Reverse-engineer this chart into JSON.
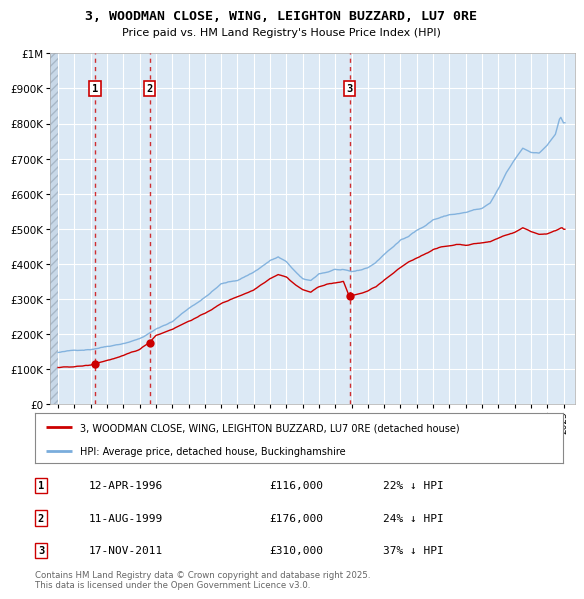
{
  "title": "3, WOODMAN CLOSE, WING, LEIGHTON BUZZARD, LU7 0RE",
  "subtitle": "Price paid vs. HM Land Registry's House Price Index (HPI)",
  "legend_entry1": "3, WOODMAN CLOSE, WING, LEIGHTON BUZZARD, LU7 0RE (detached house)",
  "legend_entry2": "HPI: Average price, detached house, Buckinghamshire",
  "footer": "Contains HM Land Registry data © Crown copyright and database right 2025.\nThis data is licensed under the Open Government Licence v3.0.",
  "sale_color": "#cc0000",
  "hpi_color": "#7aaddc",
  "vline_color": "#cc0000",
  "bg_color": "#dce9f5",
  "ylim": [
    0,
    1000000
  ],
  "yticks": [
    0,
    100000,
    200000,
    300000,
    400000,
    500000,
    600000,
    700000,
    800000,
    900000,
    1000000
  ],
  "xlim_start": 1993.5,
  "xlim_end": 2025.7,
  "sales": [
    {
      "date": 1996.27,
      "price": 116000,
      "label": "1",
      "text": "12-APR-1996",
      "amount": "£116,000",
      "hpi_pct": "22% ↓ HPI"
    },
    {
      "date": 1999.61,
      "price": 176000,
      "label": "2",
      "text": "11-AUG-1999",
      "amount": "£176,000",
      "hpi_pct": "24% ↓ HPI"
    },
    {
      "date": 2011.88,
      "price": 310000,
      "label": "3",
      "text": "17-NOV-2011",
      "amount": "£310,000",
      "hpi_pct": "37% ↓ HPI"
    }
  ]
}
